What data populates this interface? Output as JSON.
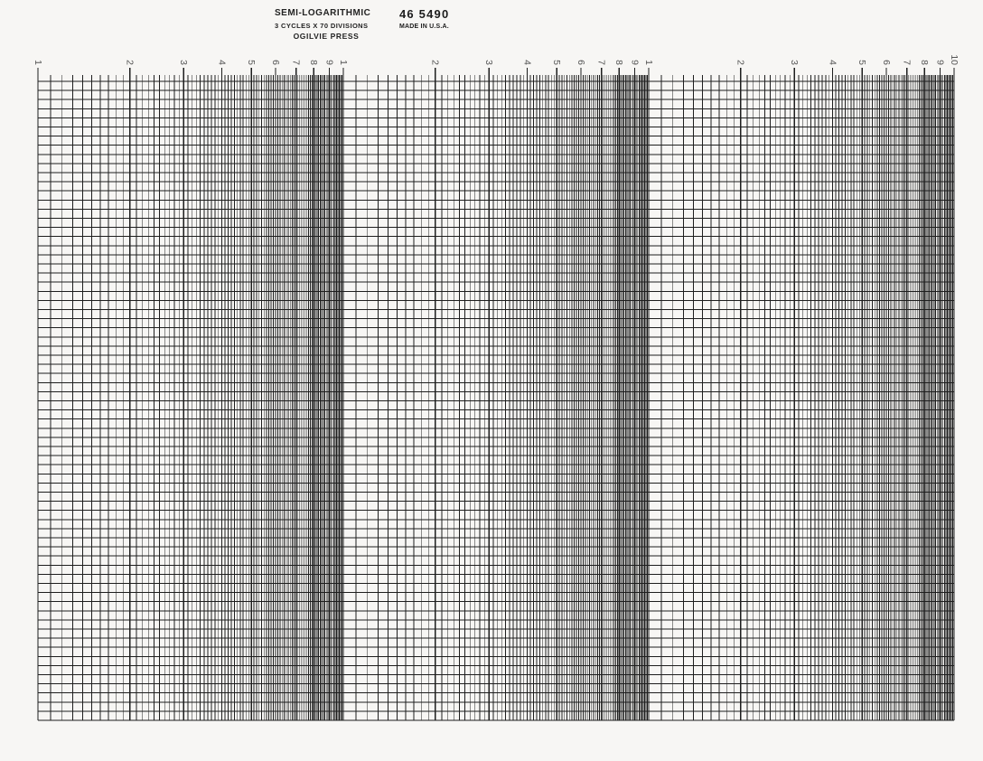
{
  "header": {
    "title": "SEMI-LOGARITHMIC",
    "subtitle": "3 CYCLES X 70 DIVISIONS",
    "publisher": "OGILVIE PRESS",
    "catalog_number": "46 5490",
    "origin": "MADE IN U.S.A."
  },
  "axis": {
    "top_labels": [
      "1",
      "2",
      "3",
      "4",
      "5",
      "6",
      "7",
      "8",
      "9",
      "1",
      "2",
      "3",
      "4",
      "5",
      "6",
      "7",
      "8",
      "9",
      "1",
      "2",
      "3",
      "4",
      "5",
      "6",
      "7",
      "8",
      "9",
      "10"
    ]
  },
  "grid": {
    "type": "semi-log-grid",
    "cycles": 3,
    "divisions": 70,
    "minor_per_interval": 10
  },
  "colors": {
    "paper": "#f7f6f4",
    "grid_line": "#1e1e1e",
    "label_text": "#555555",
    "header_text": "#232323"
  }
}
